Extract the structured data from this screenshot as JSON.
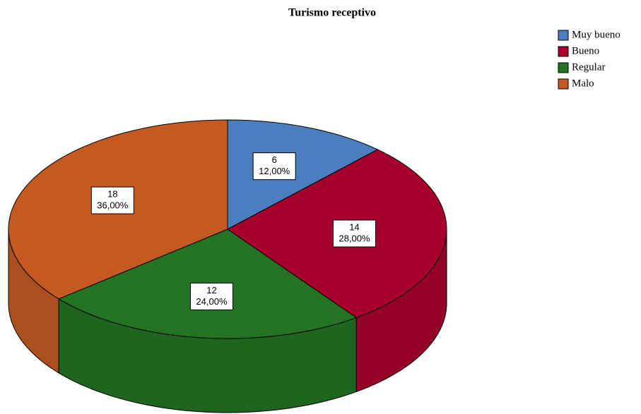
{
  "chart_data": {
    "type": "pie3d",
    "title": "Turismo receptivo",
    "categories": [
      "Muy bueno",
      "Bueno",
      "Regular",
      "Malo"
    ],
    "values": [
      6,
      14,
      12,
      18
    ],
    "percentages": [
      12,
      28,
      24,
      36
    ],
    "percentage_labels": [
      "12,00%",
      "28,00%",
      "24,00%",
      "36,00%"
    ],
    "colors": [
      "#4a7ebf",
      "#a8002c",
      "#237323",
      "#c45a22"
    ],
    "legend": "top-right"
  }
}
